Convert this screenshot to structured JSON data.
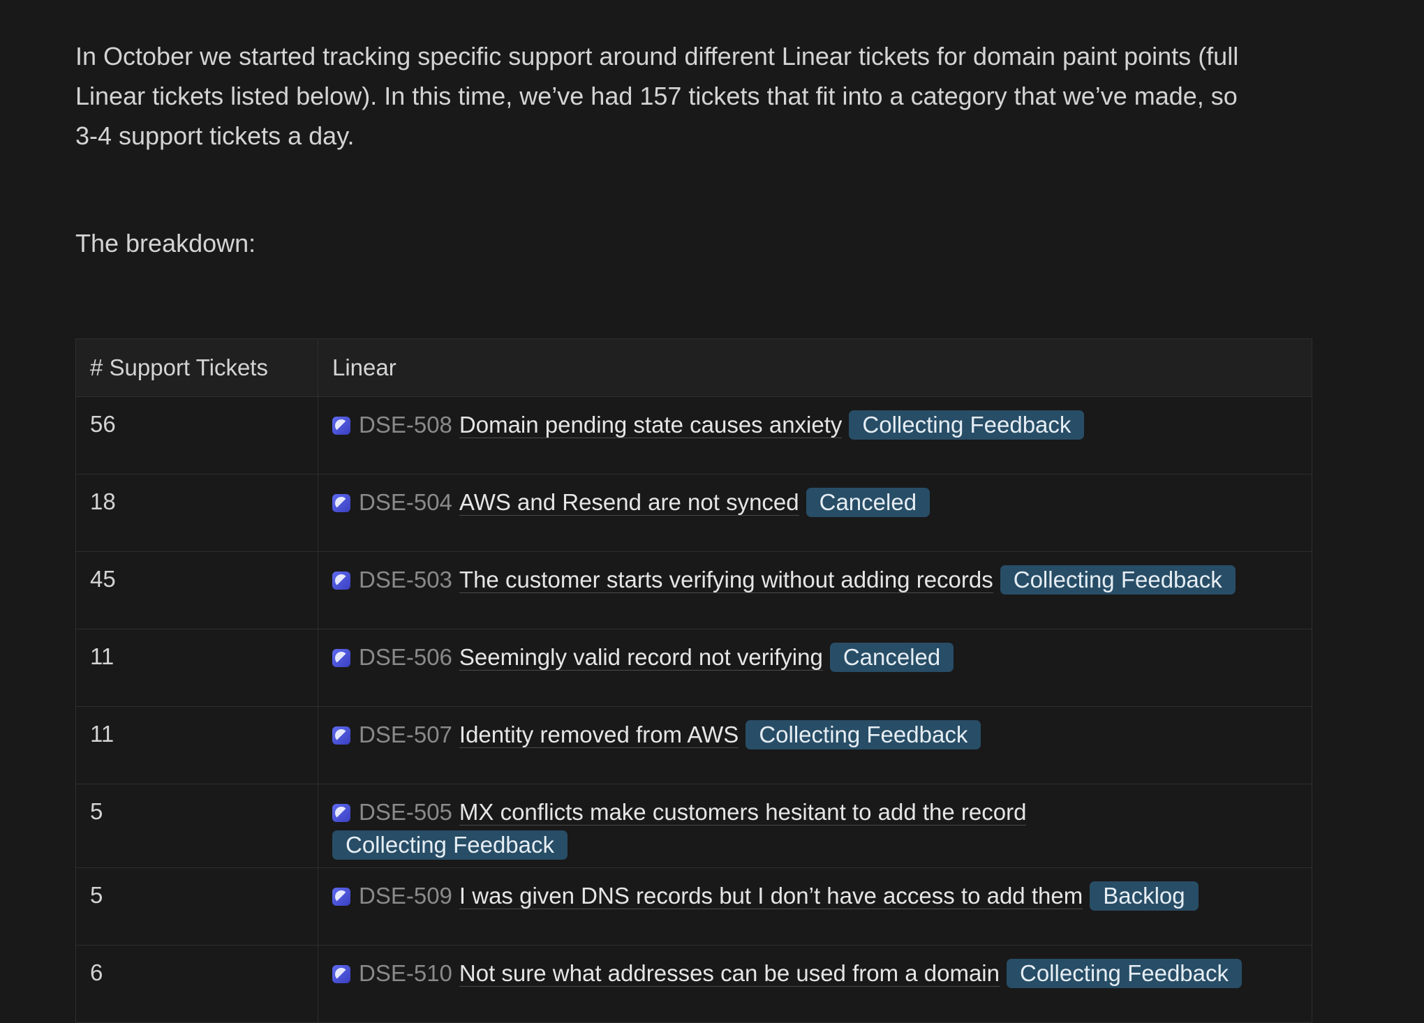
{
  "intro": "In October we started tracking specific support around different Linear tickets for domain paint points (full Linear tickets listed below). In this time, we’ve had 157 tickets that fit into a category that we’ve made, so 3-4 support tickets a day.",
  "breakdown_label": "The breakdown:",
  "table": {
    "headers": [
      "# Support Tickets",
      "Linear"
    ],
    "rows": [
      {
        "count": "56",
        "id": "DSE-508",
        "title": "Domain pending state causes anxiety",
        "status": "Collecting Feedback"
      },
      {
        "count": "18",
        "id": "DSE-504",
        "title": "AWS and Resend are not synced",
        "status": "Canceled"
      },
      {
        "count": "45",
        "id": "DSE-503",
        "title": "The customer starts verifying without adding records",
        "status": "Collecting Feedback"
      },
      {
        "count": "11",
        "id": "DSE-506",
        "title": "Seemingly valid record not verifying",
        "status": "Canceled"
      },
      {
        "count": "11",
        "id": "DSE-507",
        "title": "Identity removed from AWS",
        "status": "Collecting Feedback"
      },
      {
        "count": "5",
        "id": "DSE-505",
        "title": "MX conflicts make customers hesitant to add the record",
        "status": "Collecting Feedback"
      },
      {
        "count": "5",
        "id": "DSE-509",
        "title": "I was given DNS records but I don’t have access to add them",
        "status": "Backlog"
      },
      {
        "count": "6",
        "id": "DSE-510",
        "title": "Not sure what addresses can be used from a domain",
        "status": "Collecting Feedback"
      }
    ]
  },
  "colors": {
    "background": "#191919",
    "badge": "#284d66",
    "linear_icon": "#4f58e0"
  },
  "icons": {
    "linear": "linear-logo-icon"
  }
}
